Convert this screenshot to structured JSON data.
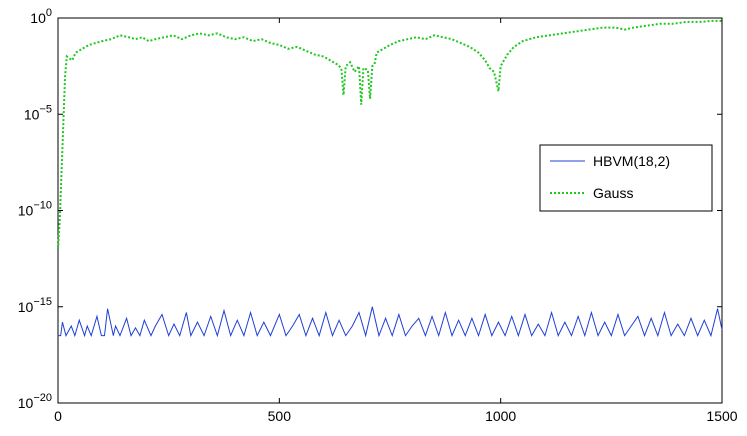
{
  "chart_data": {
    "type": "line",
    "title": "",
    "xlabel": "",
    "ylabel": "",
    "xlim": [
      0,
      1500
    ],
    "ylim_exp": [
      -20,
      0
    ],
    "yscale": "log",
    "x_ticks": [
      {
        "value": 0,
        "label": "0"
      },
      {
        "value": 500,
        "label": "500"
      },
      {
        "value": 1000,
        "label": "1000"
      },
      {
        "value": 1500,
        "label": "1500"
      }
    ],
    "y_ticks": [
      {
        "exp": 0,
        "base": "10",
        "sup": "0"
      },
      {
        "exp": -5,
        "base": "10",
        "sup": "−5"
      },
      {
        "exp": -10,
        "base": "10",
        "sup": "−10"
      },
      {
        "exp": -15,
        "base": "10",
        "sup": "−15"
      },
      {
        "exp": -20,
        "base": "10",
        "sup": "−20"
      }
    ],
    "grid": false,
    "legend_position": "right",
    "series": [
      {
        "name": "HBVM(18,2)",
        "color": "#1f3fd6",
        "style": "solid",
        "x": [
          0,
          6,
          10,
          18,
          30,
          38,
          48,
          60,
          66,
          75,
          88,
          98,
          105,
          112,
          125,
          130,
          140,
          155,
          165,
          175,
          185,
          195,
          210,
          220,
          235,
          250,
          262,
          275,
          290,
          300,
          315,
          330,
          345,
          360,
          375,
          390,
          405,
          420,
          435,
          450,
          465,
          480,
          500,
          515,
          530,
          545,
          560,
          575,
          590,
          605,
          620,
          635,
          650,
          665,
          680,
          695,
          710,
          725,
          740,
          755,
          770,
          785,
          800,
          815,
          830,
          845,
          860,
          875,
          890,
          905,
          920,
          935,
          950,
          965,
          980,
          995,
          1010,
          1025,
          1040,
          1055,
          1070,
          1085,
          1100,
          1115,
          1130,
          1145,
          1160,
          1175,
          1190,
          1205,
          1220,
          1235,
          1250,
          1265,
          1280,
          1295,
          1310,
          1325,
          1340,
          1355,
          1370,
          1385,
          1400,
          1415,
          1430,
          1445,
          1460,
          1475,
          1490,
          1500
        ],
        "y_exp": [
          -16.5,
          -16.5,
          -15.8,
          -16.5,
          -16.0,
          -16.5,
          -15.7,
          -16.5,
          -16.0,
          -16.5,
          -15.5,
          -16.5,
          -16.5,
          -15.1,
          -16.5,
          -16.0,
          -16.5,
          -15.6,
          -16.5,
          -16.1,
          -16.5,
          -15.7,
          -16.5,
          -16.0,
          -15.4,
          -16.5,
          -15.9,
          -16.5,
          -15.3,
          -16.5,
          -15.8,
          -16.5,
          -15.5,
          -16.5,
          -15.2,
          -16.5,
          -15.7,
          -16.5,
          -15.3,
          -16.5,
          -15.8,
          -16.5,
          -15.4,
          -16.5,
          -16.0,
          -15.4,
          -16.5,
          -15.6,
          -16.5,
          -15.3,
          -16.5,
          -15.7,
          -16.5,
          -16.0,
          -15.3,
          -16.5,
          -15.0,
          -16.5,
          -15.6,
          -16.5,
          -15.4,
          -16.5,
          -16.0,
          -15.6,
          -16.5,
          -15.5,
          -16.5,
          -15.3,
          -16.5,
          -15.7,
          -16.5,
          -15.6,
          -16.5,
          -15.4,
          -16.5,
          -15.8,
          -16.5,
          -15.5,
          -16.5,
          -15.4,
          -16.5,
          -15.9,
          -16.5,
          -15.3,
          -16.5,
          -15.8,
          -16.5,
          -15.5,
          -16.5,
          -15.3,
          -16.5,
          -15.8,
          -16.5,
          -15.4,
          -16.5,
          -16.0,
          -15.5,
          -16.5,
          -15.6,
          -16.5,
          -15.3,
          -16.5,
          -15.9,
          -16.5,
          -15.6,
          -16.5,
          -15.7,
          -16.5,
          -15.1,
          -16.2
        ]
      },
      {
        "name": "Gauss",
        "color": "#1ec81e",
        "style": "dotted",
        "x": [
          0,
          4,
          8,
          12,
          16,
          20,
          26,
          32,
          40,
          55,
          70,
          85,
          100,
          120,
          140,
          160,
          175,
          190,
          205,
          220,
          240,
          260,
          280,
          300,
          320,
          340,
          360,
          380,
          400,
          420,
          440,
          460,
          480,
          500,
          520,
          540,
          560,
          580,
          600,
          615,
          630,
          640,
          645,
          650,
          660,
          670,
          680,
          685,
          690,
          700,
          705,
          710,
          715,
          720,
          735,
          750,
          770,
          790,
          810,
          830,
          850,
          870,
          890,
          910,
          930,
          950,
          965,
          975,
          985,
          995,
          1000,
          1005,
          1015,
          1030,
          1050,
          1080,
          1110,
          1140,
          1170,
          1200,
          1230,
          1260,
          1280,
          1300,
          1330,
          1360,
          1390,
          1420,
          1450,
          1480,
          1500
        ],
        "y_exp": [
          -12.0,
          -10.5,
          -8.0,
          -5.5,
          -3.0,
          -2.0,
          -2.1,
          -2.2,
          -1.8,
          -1.6,
          -1.4,
          -1.3,
          -1.2,
          -1.1,
          -0.9,
          -1.0,
          -1.1,
          -1.0,
          -1.2,
          -1.1,
          -1.0,
          -0.9,
          -1.1,
          -0.9,
          -0.8,
          -0.9,
          -0.8,
          -1.0,
          -1.1,
          -1.0,
          -1.2,
          -1.1,
          -1.3,
          -1.4,
          -1.6,
          -1.5,
          -1.7,
          -1.9,
          -2.0,
          -2.2,
          -2.4,
          -2.6,
          -4.0,
          -2.5,
          -2.3,
          -2.8,
          -2.5,
          -4.5,
          -2.6,
          -2.7,
          -4.2,
          -2.5,
          -2.4,
          -1.8,
          -1.6,
          -1.4,
          -1.2,
          -1.1,
          -1.0,
          -1.1,
          -0.9,
          -1.0,
          -1.1,
          -1.3,
          -1.5,
          -1.8,
          -2.2,
          -2.6,
          -2.8,
          -3.8,
          -2.5,
          -2.3,
          -1.9,
          -1.5,
          -1.2,
          -1.0,
          -0.9,
          -0.8,
          -0.7,
          -0.6,
          -0.5,
          -0.5,
          -0.6,
          -0.5,
          -0.4,
          -0.3,
          -0.3,
          -0.2,
          -0.2,
          -0.15,
          -0.15
        ]
      }
    ]
  }
}
